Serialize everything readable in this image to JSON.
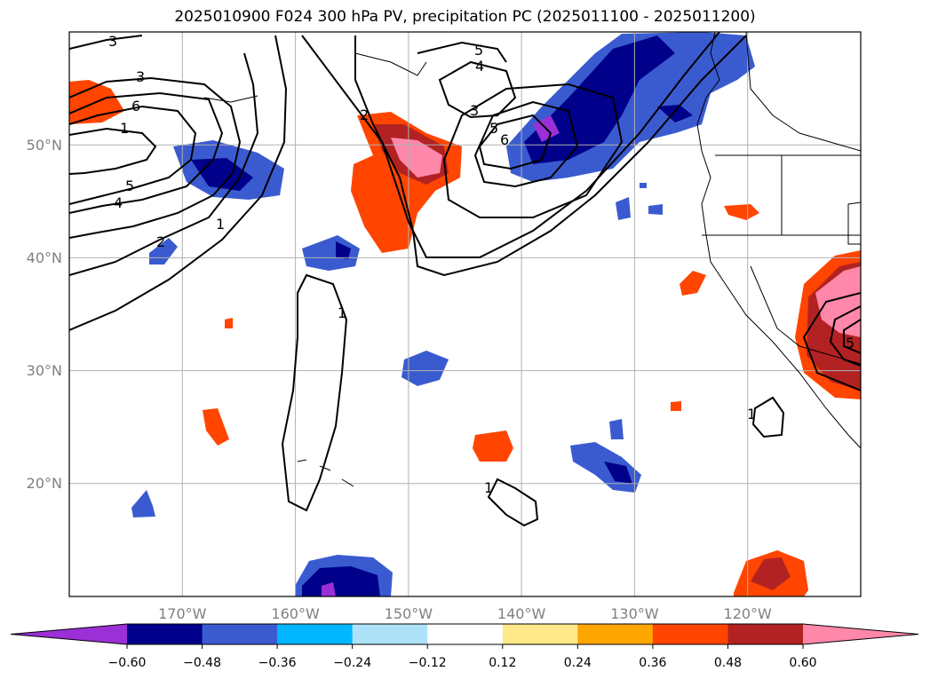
{
  "title": "2025010900 F024 300 hPa PV, precipitation PC (2025011100 - 2025011200)",
  "map": {
    "projection": "PlateCarree",
    "lon_range": [
      -180,
      -110
    ],
    "lat_range": [
      10,
      60
    ],
    "gridlines": true,
    "coastlines": true,
    "lon_ticks": [
      "170°W",
      "160°W",
      "150°W",
      "140°W",
      "130°W",
      "120°W"
    ],
    "lat_ticks": [
      "20°N",
      "30°N",
      "40°N",
      "50°N"
    ]
  },
  "colorbar": {
    "orientation": "horizontal",
    "extend": "both",
    "colors": [
      "#9b30d6",
      "#00008b",
      "#3a5bd0",
      "#00b7ff",
      "#aee2f8",
      "#ffffff",
      "#ffe98a",
      "#ffa500",
      "#ff4500",
      "#b22222",
      "#ff88aa"
    ],
    "tick_labels": [
      "−0.60",
      "−0.48",
      "−0.36",
      "−0.24",
      "−0.12",
      "0.12",
      "0.24",
      "0.36",
      "0.48",
      "0.60"
    ]
  },
  "contour_labels": [
    "3",
    "3",
    "6",
    "1",
    "5",
    "4",
    "2",
    "1",
    "5",
    "4",
    "3",
    "5",
    "6",
    "2",
    "1",
    "1",
    "1",
    "5"
  ]
}
